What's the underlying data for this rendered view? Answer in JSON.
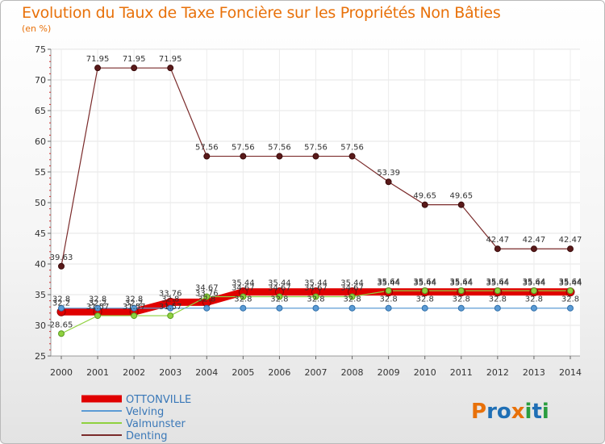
{
  "brand": {
    "text": "Proxiti",
    "colors": [
      "#e8710a",
      "#1f6fb5",
      "#2a9d3f"
    ]
  },
  "chart_data": {
    "type": "line",
    "title": "Evolution du Taux de Taxe Foncière sur les Propriétés Non Bâties",
    "ylabel": "(en %)",
    "xlabel": "",
    "ylim": [
      25,
      75
    ],
    "yticks": [
      25,
      30,
      35,
      40,
      45,
      50,
      55,
      60,
      65,
      70,
      75
    ],
    "categories": [
      "2000",
      "2001",
      "2002",
      "2003",
      "2004",
      "2005",
      "2006",
      "2007",
      "2008",
      "2009",
      "2010",
      "2011",
      "2012",
      "2013",
      "2014"
    ],
    "series": [
      {
        "name": "OTTONVILLE",
        "color": "#e00000",
        "lineWidth": 9,
        "values": [
          32.2,
          32.2,
          32.2,
          33.76,
          33.76,
          35.44,
          35.44,
          35.44,
          35.44,
          35.44,
          35.44,
          35.44,
          35.44,
          35.44,
          35.44
        ],
        "labels": [
          "32.2",
          "32.2",
          "32.2",
          "33.76",
          "33.76",
          "35.44",
          "35.44",
          "35.44",
          "35.44",
          "35.44",
          "35.44",
          "35.44",
          "35.44",
          "35.44",
          "35.44"
        ]
      },
      {
        "name": "Velving",
        "color": "#5b9bd5",
        "lineWidth": 1.2,
        "values": [
          32.8,
          32.8,
          32.8,
          32.8,
          32.8,
          32.8,
          32.8,
          32.8,
          32.8,
          32.8,
          32.8,
          32.8,
          32.8,
          32.8,
          32.8
        ],
        "labels": [
          "32.8",
          "32.8",
          "32.8",
          "32.8",
          "32.8",
          "32.8",
          "32.8",
          "32.8",
          "32.8",
          "32.8",
          "32.8",
          "32.8",
          "32.8",
          "32.8",
          "32.8"
        ]
      },
      {
        "name": "Valmunster",
        "color": "#8fd13f",
        "lineWidth": 1.2,
        "values": [
          28.65,
          31.57,
          31.57,
          31.57,
          34.67,
          34.67,
          34.67,
          34.67,
          34.67,
          35.64,
          35.64,
          35.64,
          35.64,
          35.64,
          35.64
        ],
        "labels": [
          "28.65",
          "31.57",
          "31.57",
          "31.57",
          "34.67",
          "34.67",
          "34.67",
          "34.67",
          "34.67",
          "35.64",
          "35.64",
          "35.64",
          "35.64",
          "35.64",
          "35.64"
        ]
      },
      {
        "name": "Denting",
        "color": "#7a2a2a",
        "lineWidth": 1.2,
        "values": [
          39.63,
          71.95,
          71.95,
          71.95,
          57.56,
          57.56,
          57.56,
          57.56,
          57.56,
          53.39,
          49.65,
          49.65,
          42.47,
          42.47,
          42.47
        ],
        "labels": [
          "39.63",
          "71.95",
          "71.95",
          "71.95",
          "57.56",
          "57.56",
          "57.56",
          "57.56",
          "57.56",
          "53.39",
          "49.65",
          "49.65",
          "42.47",
          "42.47",
          "42.47"
        ]
      }
    ]
  }
}
